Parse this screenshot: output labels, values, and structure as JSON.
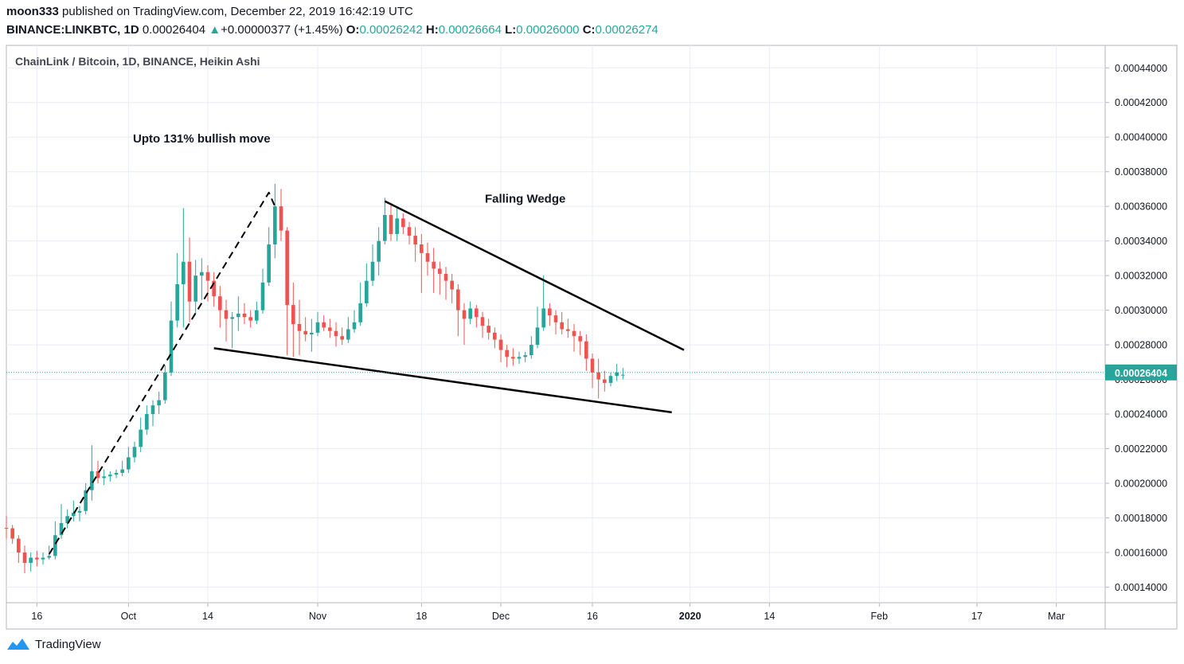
{
  "header": {
    "author": "moon333",
    "published_text": "published on TradingView.com, December 22, 2019 16:42:19 UTC",
    "symbol": "BINANCE:LINKBTC, 1D",
    "last": "0.00026404",
    "change_arrow": "▲",
    "change": "+0.00000377 (+1.45%)",
    "o_label": "O:",
    "o_value": "0.00026242",
    "h_label": "H:",
    "h_value": "0.00026664",
    "l_label": "L:",
    "l_value": "0.00026000",
    "c_label": "C:",
    "c_value": "0.00026274"
  },
  "footer": {
    "brand": "TradingView",
    "logo_icon": "tradingview-logo-icon"
  },
  "colors": {
    "up": "#26a69a",
    "down": "#ef5350",
    "grid": "#e8ecf3",
    "text": "#131722",
    "price_line": "#26a69a"
  },
  "chart_data": {
    "type": "candlestick",
    "title": "ChainLink / Bitcoin, 1D, BINANCE, Heikin Ashi",
    "ylim": [
      0.000131,
      0.000453
    ],
    "y_ticks": [
      0.00014,
      0.00016,
      0.00018,
      0.0002,
      0.00022,
      0.00024,
      0.00026,
      0.00028,
      0.0003,
      0.00032,
      0.00034,
      0.00036,
      0.00038,
      0.0004,
      0.00042,
      0.00044
    ],
    "y_tick_labels": [
      "0.00014000",
      "0.00016000",
      "0.00018000",
      "0.00020000",
      "0.00022000",
      "0.00024000",
      "0.00026000",
      "0.00028000",
      "0.00030000",
      "0.00032000",
      "0.00034000",
      "0.00036000",
      "0.00038000",
      "0.00040000",
      "0.00042000",
      "0.00044000"
    ],
    "x_start": "2019-09-11",
    "x_end": "2020-03-09",
    "x_ticks": [
      {
        "date": "2019-09-16",
        "label": "16"
      },
      {
        "date": "2019-10-01",
        "label": "Oct"
      },
      {
        "date": "2019-10-14",
        "label": "14"
      },
      {
        "date": "2019-11-01",
        "label": "Nov"
      },
      {
        "date": "2019-11-18",
        "label": "18"
      },
      {
        "date": "2019-12-01",
        "label": "Dec"
      },
      {
        "date": "2019-12-16",
        "label": "16"
      },
      {
        "date": "2020-01-01",
        "label": "2020"
      },
      {
        "date": "2020-01-14",
        "label": "14"
      },
      {
        "date": "2020-02-01",
        "label": "Feb"
      },
      {
        "date": "2020-02-17",
        "label": "17"
      },
      {
        "date": "2020-03-01",
        "label": "Mar"
      }
    ],
    "current_price": 0.00026404,
    "current_price_label": "0.00026404",
    "candles": [
      {
        "date": "2019-09-11",
        "o": 0.0001742,
        "h": 0.000181,
        "l": 0.000168,
        "c": 0.000174
      },
      {
        "date": "2019-09-12",
        "o": 0.000174,
        "h": 0.000176,
        "l": 0.000165,
        "c": 0.000168
      },
      {
        "date": "2019-09-13",
        "o": 0.000168,
        "h": 0.00017,
        "l": 0.000154,
        "c": 0.00016
      },
      {
        "date": "2019-09-14",
        "o": 0.00016,
        "h": 0.000164,
        "l": 0.000148,
        "c": 0.000154
      },
      {
        "date": "2019-09-15",
        "o": 0.000154,
        "h": 0.00016,
        "l": 0.000149,
        "c": 0.000157
      },
      {
        "date": "2019-09-16",
        "o": 0.000157,
        "h": 0.000161,
        "l": 0.000152,
        "c": 0.000156
      },
      {
        "date": "2019-09-17",
        "o": 0.000156,
        "h": 0.00016,
        "l": 0.000153,
        "c": 0.000157
      },
      {
        "date": "2019-09-18",
        "o": 0.000157,
        "h": 0.000164,
        "l": 0.000156,
        "c": 0.000158
      },
      {
        "date": "2019-09-19",
        "o": 0.000158,
        "h": 0.000178,
        "l": 0.000156,
        "c": 0.00017
      },
      {
        "date": "2019-09-20",
        "o": 0.00017,
        "h": 0.000188,
        "l": 0.000168,
        "c": 0.000177
      },
      {
        "date": "2019-09-21",
        "o": 0.000177,
        "h": 0.000185,
        "l": 0.000174,
        "c": 0.000181
      },
      {
        "date": "2019-09-22",
        "o": 0.000181,
        "h": 0.00019,
        "l": 0.000178,
        "c": 0.000183
      },
      {
        "date": "2019-09-23",
        "o": 0.000183,
        "h": 0.000187,
        "l": 0.000178,
        "c": 0.000184
      },
      {
        "date": "2019-09-24",
        "o": 0.000184,
        "h": 0.0002,
        "l": 0.000182,
        "c": 0.000196
      },
      {
        "date": "2019-09-25",
        "o": 0.000196,
        "h": 0.000222,
        "l": 0.00019,
        "c": 0.000207
      },
      {
        "date": "2019-09-26",
        "o": 0.000207,
        "h": 0.000213,
        "l": 0.0002,
        "c": 0.000203
      },
      {
        "date": "2019-09-27",
        "o": 0.000203,
        "h": 0.000208,
        "l": 0.000199,
        "c": 0.000204
      },
      {
        "date": "2019-09-28",
        "o": 0.000204,
        "h": 0.000207,
        "l": 0.000201,
        "c": 0.000205
      },
      {
        "date": "2019-09-29",
        "o": 0.000205,
        "h": 0.000208,
        "l": 0.000203,
        "c": 0.000206
      },
      {
        "date": "2019-09-30",
        "o": 0.000206,
        "h": 0.000213,
        "l": 0.000204,
        "c": 0.000208
      },
      {
        "date": "2019-10-01",
        "o": 0.000208,
        "h": 0.000221,
        "l": 0.000206,
        "c": 0.000215
      },
      {
        "date": "2019-10-02",
        "o": 0.000215,
        "h": 0.000224,
        "l": 0.000212,
        "c": 0.000221
      },
      {
        "date": "2019-10-03",
        "o": 0.000221,
        "h": 0.000238,
        "l": 0.000218,
        "c": 0.000231
      },
      {
        "date": "2019-10-04",
        "o": 0.000231,
        "h": 0.000245,
        "l": 0.000228,
        "c": 0.00024
      },
      {
        "date": "2019-10-05",
        "o": 0.00024,
        "h": 0.000248,
        "l": 0.000233,
        "c": 0.000245
      },
      {
        "date": "2019-10-06",
        "o": 0.000245,
        "h": 0.000253,
        "l": 0.00024,
        "c": 0.000248
      },
      {
        "date": "2019-10-07",
        "o": 0.000248,
        "h": 0.000268,
        "l": 0.000246,
        "c": 0.000264
      },
      {
        "date": "2019-10-08",
        "o": 0.000264,
        "h": 0.000305,
        "l": 0.000262,
        "c": 0.000294
      },
      {
        "date": "2019-10-09",
        "o": 0.000294,
        "h": 0.000333,
        "l": 0.00029,
        "c": 0.000315
      },
      {
        "date": "2019-10-10",
        "o": 0.000315,
        "h": 0.000359,
        "l": 0.00029,
        "c": 0.000328
      },
      {
        "date": "2019-10-11",
        "o": 0.000328,
        "h": 0.000342,
        "l": 0.000293,
        "c": 0.000305
      },
      {
        "date": "2019-10-12",
        "o": 0.000305,
        "h": 0.000329,
        "l": 0.000298,
        "c": 0.00032
      },
      {
        "date": "2019-10-13",
        "o": 0.00032,
        "h": 0.00033,
        "l": 0.000306,
        "c": 0.000322
      },
      {
        "date": "2019-10-14",
        "o": 0.000322,
        "h": 0.000326,
        "l": 0.000305,
        "c": 0.000317
      },
      {
        "date": "2019-10-15",
        "o": 0.000317,
        "h": 0.000322,
        "l": 0.000302,
        "c": 0.000308
      },
      {
        "date": "2019-10-16",
        "o": 0.000308,
        "h": 0.000314,
        "l": 0.00029,
        "c": 0.0003
      },
      {
        "date": "2019-10-17",
        "o": 0.0003,
        "h": 0.000306,
        "l": 0.000282,
        "c": 0.000295
      },
      {
        "date": "2019-10-18",
        "o": 0.000295,
        "h": 0.000299,
        "l": 0.000278,
        "c": 0.000296
      },
      {
        "date": "2019-10-19",
        "o": 0.000296,
        "h": 0.000308,
        "l": 0.000288,
        "c": 0.000298
      },
      {
        "date": "2019-10-20",
        "o": 0.000298,
        "h": 0.000304,
        "l": 0.000292,
        "c": 0.000296
      },
      {
        "date": "2019-10-21",
        "o": 0.000296,
        "h": 0.0003,
        "l": 0.00029,
        "c": 0.000294
      },
      {
        "date": "2019-10-22",
        "o": 0.000294,
        "h": 0.000305,
        "l": 0.000292,
        "c": 0.0003
      },
      {
        "date": "2019-10-23",
        "o": 0.0003,
        "h": 0.000324,
        "l": 0.000298,
        "c": 0.000316
      },
      {
        "date": "2019-10-24",
        "o": 0.000316,
        "h": 0.000348,
        "l": 0.000314,
        "c": 0.000338
      },
      {
        "date": "2019-10-25",
        "o": 0.000338,
        "h": 0.000373,
        "l": 0.00033,
        "c": 0.00036
      },
      {
        "date": "2019-10-26",
        "o": 0.00036,
        "h": 0.00037,
        "l": 0.00034,
        "c": 0.000346
      },
      {
        "date": "2019-10-27",
        "o": 0.000346,
        "h": 0.000348,
        "l": 0.000274,
        "c": 0.000303
      },
      {
        "date": "2019-10-28",
        "o": 0.000303,
        "h": 0.000316,
        "l": 0.000273,
        "c": 0.000292
      },
      {
        "date": "2019-10-29",
        "o": 0.000292,
        "h": 0.000306,
        "l": 0.000274,
        "c": 0.000288
      },
      {
        "date": "2019-10-30",
        "o": 0.000288,
        "h": 0.000296,
        "l": 0.000282,
        "c": 0.000286
      },
      {
        "date": "2019-10-31",
        "o": 0.000286,
        "h": 0.000295,
        "l": 0.000276,
        "c": 0.000287
      },
      {
        "date": "2019-11-01",
        "o": 0.000287,
        "h": 0.000299,
        "l": 0.000285,
        "c": 0.000293
      },
      {
        "date": "2019-11-02",
        "o": 0.000293,
        "h": 0.000297,
        "l": 0.000288,
        "c": 0.00029
      },
      {
        "date": "2019-11-03",
        "o": 0.00029,
        "h": 0.000295,
        "l": 0.000284,
        "c": 0.000288
      },
      {
        "date": "2019-11-04",
        "o": 0.000288,
        "h": 0.000293,
        "l": 0.000279,
        "c": 0.000285
      },
      {
        "date": "2019-11-05",
        "o": 0.000285,
        "h": 0.00029,
        "l": 0.00028,
        "c": 0.000283
      },
      {
        "date": "2019-11-06",
        "o": 0.000283,
        "h": 0.000296,
        "l": 0.000281,
        "c": 0.000289
      },
      {
        "date": "2019-11-07",
        "o": 0.000289,
        "h": 0.0003,
        "l": 0.000287,
        "c": 0.000293
      },
      {
        "date": "2019-11-08",
        "o": 0.000293,
        "h": 0.000316,
        "l": 0.000291,
        "c": 0.000304
      },
      {
        "date": "2019-11-09",
        "o": 0.000304,
        "h": 0.000327,
        "l": 0.000302,
        "c": 0.000317
      },
      {
        "date": "2019-11-10",
        "o": 0.000317,
        "h": 0.000338,
        "l": 0.000314,
        "c": 0.000328
      },
      {
        "date": "2019-11-11",
        "o": 0.000328,
        "h": 0.000348,
        "l": 0.00032,
        "c": 0.00034
      },
      {
        "date": "2019-11-12",
        "o": 0.00034,
        "h": 0.000365,
        "l": 0.000338,
        "c": 0.000355
      },
      {
        "date": "2019-11-13",
        "o": 0.000355,
        "h": 0.000362,
        "l": 0.00034,
        "c": 0.000344
      },
      {
        "date": "2019-11-14",
        "o": 0.000344,
        "h": 0.00036,
        "l": 0.00034,
        "c": 0.000353
      },
      {
        "date": "2019-11-15",
        "o": 0.000353,
        "h": 0.000356,
        "l": 0.000344,
        "c": 0.000348
      },
      {
        "date": "2019-11-16",
        "o": 0.000348,
        "h": 0.000351,
        "l": 0.000338,
        "c": 0.000343
      },
      {
        "date": "2019-11-17",
        "o": 0.000343,
        "h": 0.000348,
        "l": 0.000328,
        "c": 0.000338
      },
      {
        "date": "2019-11-18",
        "o": 0.000338,
        "h": 0.000344,
        "l": 0.00031,
        "c": 0.000333
      },
      {
        "date": "2019-11-19",
        "o": 0.000333,
        "h": 0.000339,
        "l": 0.00032,
        "c": 0.000328
      },
      {
        "date": "2019-11-20",
        "o": 0.000328,
        "h": 0.000336,
        "l": 0.00031,
        "c": 0.000324
      },
      {
        "date": "2019-11-21",
        "o": 0.000324,
        "h": 0.000328,
        "l": 0.000309,
        "c": 0.000321
      },
      {
        "date": "2019-11-22",
        "o": 0.000321,
        "h": 0.000325,
        "l": 0.000306,
        "c": 0.000317
      },
      {
        "date": "2019-11-23",
        "o": 0.000317,
        "h": 0.000321,
        "l": 0.000304,
        "c": 0.000312
      },
      {
        "date": "2019-11-24",
        "o": 0.000312,
        "h": 0.000315,
        "l": 0.000285,
        "c": 0.0003
      },
      {
        "date": "2019-11-25",
        "o": 0.0003,
        "h": 0.000304,
        "l": 0.00028,
        "c": 0.000295
      },
      {
        "date": "2019-11-26",
        "o": 0.000295,
        "h": 0.000305,
        "l": 0.000292,
        "c": 0.000301
      },
      {
        "date": "2019-11-27",
        "o": 0.000301,
        "h": 0.000303,
        "l": 0.00029,
        "c": 0.000296
      },
      {
        "date": "2019-11-28",
        "o": 0.000296,
        "h": 0.000299,
        "l": 0.000284,
        "c": 0.000291
      },
      {
        "date": "2019-11-29",
        "o": 0.000291,
        "h": 0.000295,
        "l": 0.000283,
        "c": 0.000287
      },
      {
        "date": "2019-11-30",
        "o": 0.000287,
        "h": 0.00029,
        "l": 0.000278,
        "c": 0.000283
      },
      {
        "date": "2019-12-01",
        "o": 0.000283,
        "h": 0.000286,
        "l": 0.00027,
        "c": 0.000277
      },
      {
        "date": "2019-12-02",
        "o": 0.000277,
        "h": 0.00028,
        "l": 0.000267,
        "c": 0.000273
      },
      {
        "date": "2019-12-03",
        "o": 0.000273,
        "h": 0.000278,
        "l": 0.000268,
        "c": 0.000272
      },
      {
        "date": "2019-12-04",
        "o": 0.000272,
        "h": 0.000276,
        "l": 0.000269,
        "c": 0.000273
      },
      {
        "date": "2019-12-05",
        "o": 0.000273,
        "h": 0.000276,
        "l": 0.00027,
        "c": 0.000274
      },
      {
        "date": "2019-12-06",
        "o": 0.000274,
        "h": 0.000285,
        "l": 0.000272,
        "c": 0.00028
      },
      {
        "date": "2019-12-07",
        "o": 0.00028,
        "h": 0.000302,
        "l": 0.000278,
        "c": 0.00029
      },
      {
        "date": "2019-12-08",
        "o": 0.00029,
        "h": 0.00032,
        "l": 0.000288,
        "c": 0.000301
      },
      {
        "date": "2019-12-09",
        "o": 0.000301,
        "h": 0.000304,
        "l": 0.000291,
        "c": 0.000297
      },
      {
        "date": "2019-12-10",
        "o": 0.000297,
        "h": 0.0003,
        "l": 0.000286,
        "c": 0.000293
      },
      {
        "date": "2019-12-11",
        "o": 0.000293,
        "h": 0.000299,
        "l": 0.000286,
        "c": 0.000289
      },
      {
        "date": "2019-12-12",
        "o": 0.000289,
        "h": 0.000295,
        "l": 0.000284,
        "c": 0.000288
      },
      {
        "date": "2019-12-13",
        "o": 0.000288,
        "h": 0.000292,
        "l": 0.000276,
        "c": 0.000285
      },
      {
        "date": "2019-12-14",
        "o": 0.000285,
        "h": 0.000288,
        "l": 0.000274,
        "c": 0.000282
      },
      {
        "date": "2019-12-15",
        "o": 0.000282,
        "h": 0.000286,
        "l": 0.000265,
        "c": 0.000272
      },
      {
        "date": "2019-12-16",
        "o": 0.000272,
        "h": 0.000275,
        "l": 0.000255,
        "c": 0.000264
      },
      {
        "date": "2019-12-17",
        "o": 0.000264,
        "h": 0.000272,
        "l": 0.000249,
        "c": 0.00026
      },
      {
        "date": "2019-12-18",
        "o": 0.00026,
        "h": 0.000265,
        "l": 0.000253,
        "c": 0.000258
      },
      {
        "date": "2019-12-19",
        "o": 0.000258,
        "h": 0.000264,
        "l": 0.000256,
        "c": 0.000262
      },
      {
        "date": "2019-12-20",
        "o": 0.000262,
        "h": 0.000269,
        "l": 0.000259,
        "c": 0.000264
      },
      {
        "date": "2019-12-21",
        "o": 0.0002624,
        "h": 0.0002666,
        "l": 0.00026,
        "c": 0.0002627
      }
    ],
    "annotations": [
      {
        "type": "text",
        "text": "Upto 131% bullish move",
        "date": "2019-10-13",
        "price": 0.0003968
      },
      {
        "type": "text",
        "text": "Falling Wedge",
        "date": "2019-12-05",
        "price": 0.0003622
      },
      {
        "type": "line",
        "style": "dashed",
        "points": [
          [
            "2019-09-18",
            0.000159
          ],
          [
            "2019-10-24",
            0.000368
          ],
          [
            "2019-10-25",
            0.00036
          ]
        ]
      },
      {
        "type": "line",
        "style": "solid",
        "points": [
          [
            "2019-11-12",
            0.000363
          ],
          [
            "2019-12-31",
            0.000277
          ]
        ]
      },
      {
        "type": "line",
        "style": "solid",
        "points": [
          [
            "2019-10-15",
            0.000278
          ],
          [
            "2019-12-29",
            0.000241
          ]
        ]
      }
    ]
  }
}
